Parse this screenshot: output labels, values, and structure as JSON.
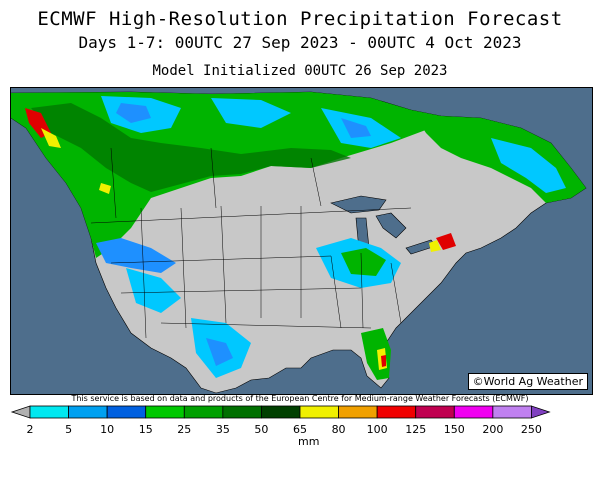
{
  "title": "ECMWF High-Resolution Precipitation Forecast",
  "subtitle": "Days 1-7: 00UTC 27 Sep 2023 - 00UTC 4 Oct 2023",
  "init": "Model Initialized 00UTC 26 Sep 2023",
  "copyright": "©World Ag Weather",
  "disclaimer": "This service is based on data and products of the European Centre for Medium-range Weather Forecasts (ECMWF)",
  "legend": {
    "unit": "mm",
    "labels": [
      "2",
      "5",
      "10",
      "15",
      "25",
      "35",
      "50",
      "65",
      "80",
      "100",
      "125",
      "150",
      "200",
      "250"
    ],
    "colors": [
      "#b0b0b0",
      "#00e8f0",
      "#00a0f0",
      "#0060e0",
      "#00c800",
      "#00a000",
      "#007000",
      "#004000",
      "#f0f000",
      "#f0a000",
      "#f00000",
      "#c00050",
      "#f000f0",
      "#c080f0",
      "#8040c0"
    ]
  },
  "map_colors": {
    "ocean": "#4e6e8c",
    "dry_land": "#c8c8c8",
    "light": "#00c8ff",
    "mid": "#1e90ff",
    "green": "#00b400",
    "dkgreen": "#007800",
    "yellow": "#f0f000",
    "red": "#e00000"
  }
}
